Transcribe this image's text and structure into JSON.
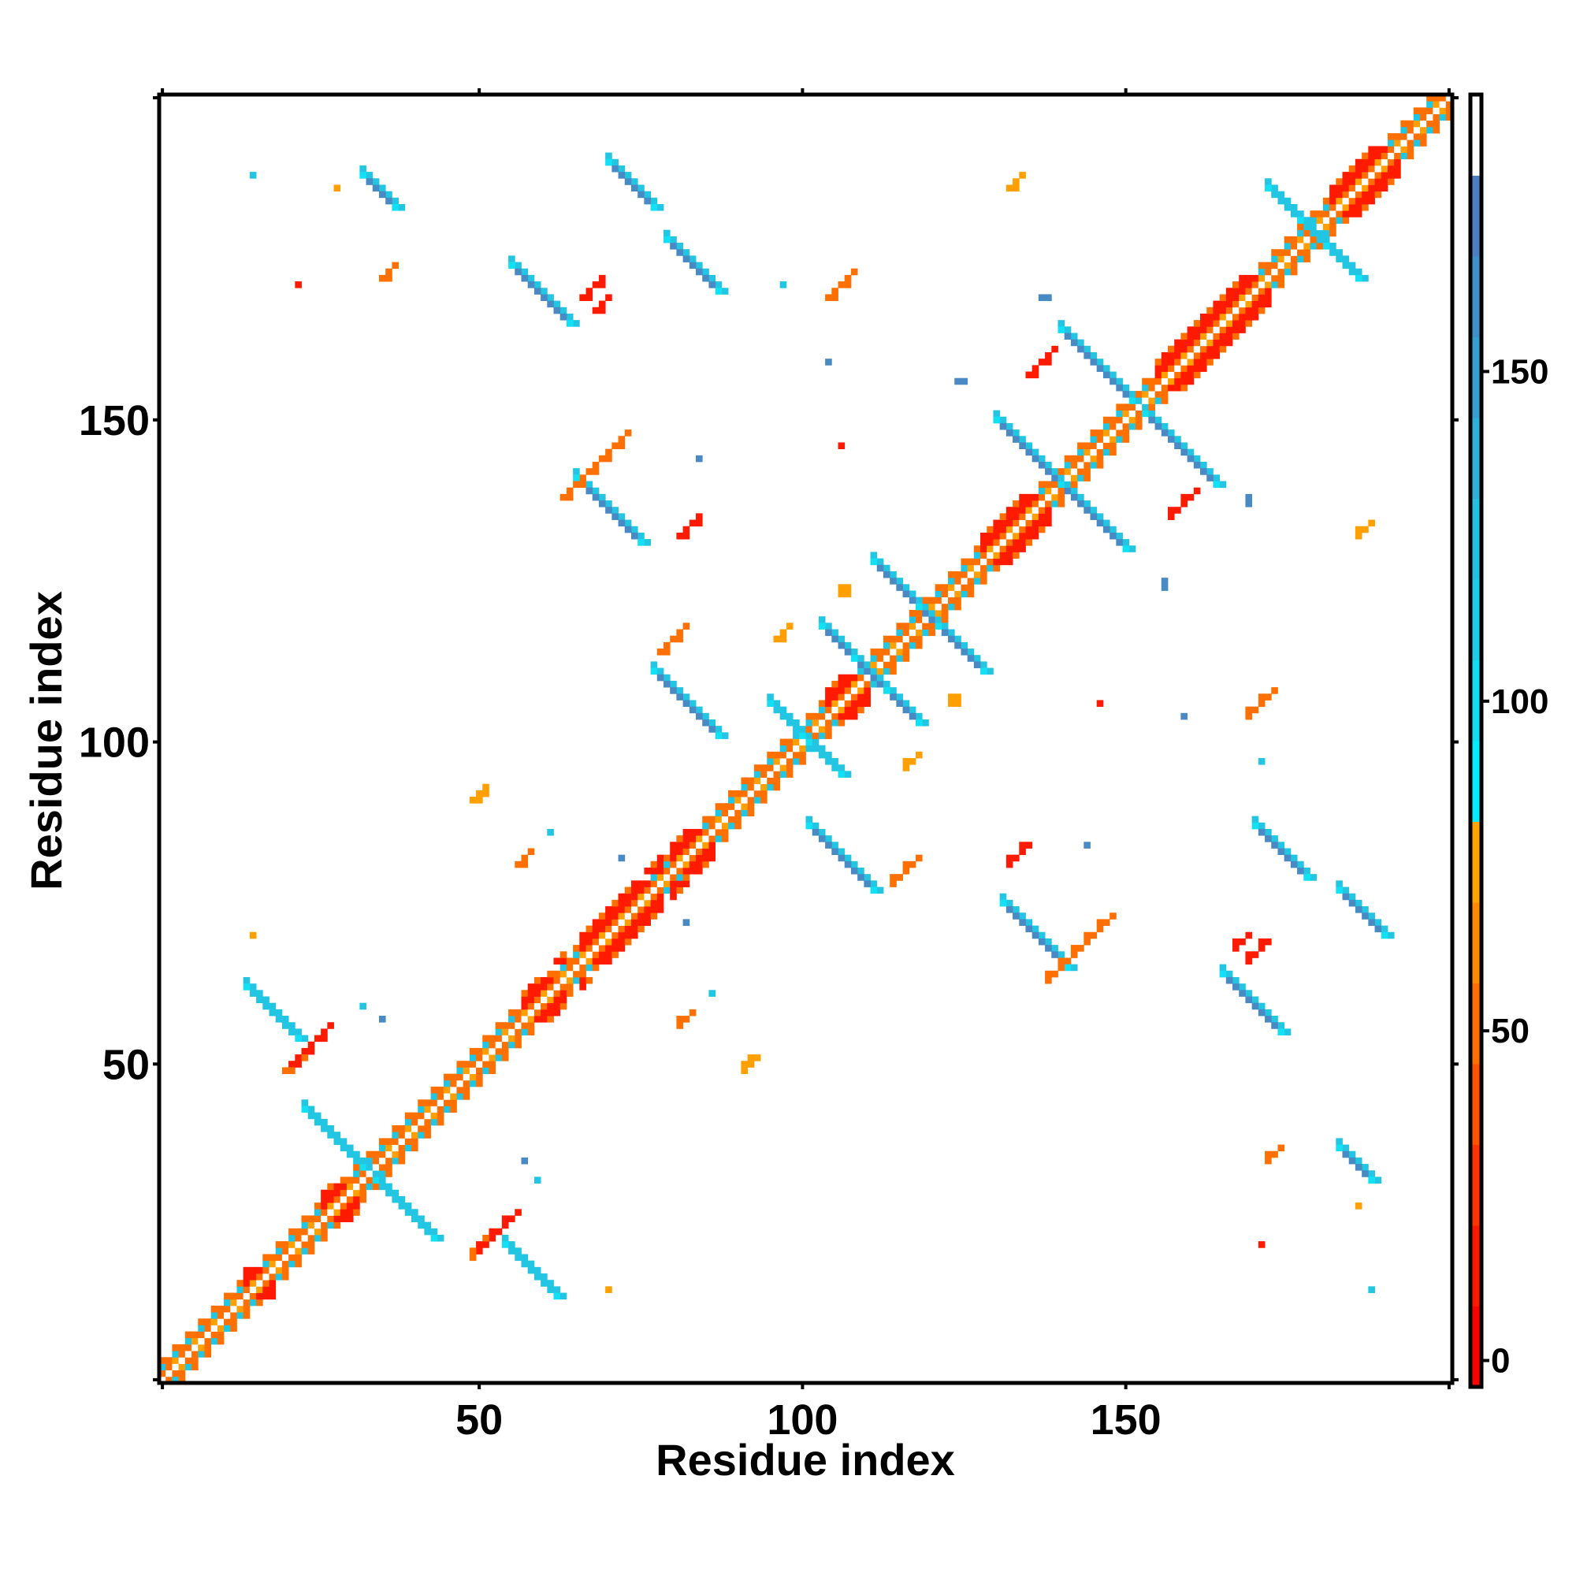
{
  "chart_data": {
    "type": "heatmap",
    "title": "",
    "xlabel": "Residue index",
    "ylabel": "Residue index",
    "n_residues": 200,
    "xlim": [
      0.5,
      200.5
    ],
    "ylim": [
      0.5,
      200.5
    ],
    "x_ticks": [
      50,
      100,
      150
    ],
    "y_ticks": [
      50,
      100,
      150
    ],
    "colorbar": {
      "ticks": [
        0,
        50,
        100,
        150
      ],
      "range": [
        -4,
        192
      ],
      "bins_bottom_to_top": [
        "#ff0000",
        "#ff1800",
        "#ff3300",
        "#ff5200",
        "#ff6e00",
        "#ff8a00",
        "#ffa500",
        "#00eeff",
        "#12dcf0",
        "#1ecde6",
        "#25c0e0",
        "#2db0d8",
        "#35a0d0",
        "#4090c8",
        "#4a80c0",
        "#ffffff"
      ]
    },
    "colors": {
      "strand_core": "#4a8ac4",
      "strand_edge": "#22c6e2",
      "strand_light": "#12e0f4",
      "helix": "#ff1a00",
      "orange": "#ff7000",
      "amber": "#ffa000",
      "white": "#ffffff"
    },
    "helices": [
      [
        14,
        18
      ],
      [
        26,
        31
      ],
      [
        57,
        63
      ],
      [
        66,
        78
      ],
      [
        80,
        86
      ],
      [
        104,
        110
      ],
      [
        128,
        138
      ],
      [
        155,
        172
      ],
      [
        182,
        192
      ]
    ],
    "antiparallel_contacts": [
      {
        "x": 32,
        "y": 188,
        "len": 6,
        "tone": "strand_core"
      },
      {
        "x": 70,
        "y": 190,
        "len": 8,
        "tone": "strand_core"
      },
      {
        "x": 79,
        "y": 178,
        "len": 9,
        "tone": "strand_core"
      },
      {
        "x": 55,
        "y": 174,
        "len": 10,
        "tone": "strand_core"
      },
      {
        "x": 65,
        "y": 141,
        "len": 11,
        "tone": "strand_core"
      },
      {
        "x": 140,
        "y": 164,
        "len": 12,
        "tone": "strand_core"
      },
      {
        "x": 130,
        "y": 150,
        "len": 11,
        "tone": "strand_core"
      },
      {
        "x": 111,
        "y": 128,
        "len": 11,
        "tone": "strand_core"
      },
      {
        "x": 103,
        "y": 118,
        "len": 11,
        "tone": "strand_core"
      },
      {
        "x": 77,
        "y": 111,
        "len": 11,
        "tone": "strand_core"
      },
      {
        "x": 14,
        "y": 62,
        "len": 9,
        "tone": "strand_edge"
      },
      {
        "x": 23,
        "y": 43,
        "len": 10,
        "tone": "strand_edge"
      },
      {
        "x": 95,
        "y": 106,
        "len": 7,
        "tone": "strand_edge"
      },
      {
        "x": 172,
        "y": 186,
        "len": 10,
        "tone": "strand_edge"
      }
    ],
    "parallel_contacts": [
      {
        "x": 63,
        "y": 138,
        "len": 11,
        "tone": "orange"
      },
      {
        "x": 104,
        "y": 169,
        "len": 5,
        "tone": "orange"
      },
      {
        "x": 81,
        "y": 132,
        "len": 4,
        "tone": "helix"
      },
      {
        "x": 35,
        "y": 172,
        "len": 3,
        "tone": "orange"
      },
      {
        "x": 78,
        "y": 114,
        "len": 5,
        "tone": "orange"
      },
      {
        "x": 49,
        "y": 91,
        "len": 3,
        "tone": "amber"
      },
      {
        "x": 20,
        "y": 49,
        "len": 4,
        "tone": "orange"
      },
      {
        "x": 56,
        "y": 81,
        "len": 3,
        "tone": "orange"
      },
      {
        "x": 21,
        "y": 50,
        "len": 7,
        "tone": "helix"
      },
      {
        "x": 68,
        "y": 167,
        "len": 3,
        "tone": "helix"
      },
      {
        "x": 135,
        "y": 157,
        "len": 5,
        "tone": "helix"
      },
      {
        "x": 96,
        "y": 116,
        "len": 3,
        "tone": "amber"
      },
      {
        "x": 106,
        "y": 123,
        "len": 2,
        "tone": "amber"
      },
      {
        "x": 66,
        "y": 169,
        "len": 4,
        "tone": "helix"
      },
      {
        "x": 132,
        "y": 186,
        "len": 3,
        "tone": "amber"
      },
      {
        "x": 123,
        "y": 106,
        "len": 2,
        "tone": "amber"
      }
    ],
    "single_contacts": [
      {
        "x": 22,
        "y": 171,
        "tone": "helix"
      },
      {
        "x": 15,
        "y": 188,
        "tone": "strand_core"
      },
      {
        "x": 15,
        "y": 70,
        "tone": "amber"
      },
      {
        "x": 171,
        "y": 22,
        "tone": "helix"
      },
      {
        "x": 188,
        "y": 15,
        "tone": "strand_edge"
      },
      {
        "x": 156,
        "y": 124,
        "tone": "strand_core"
      },
      {
        "x": 159,
        "y": 104,
        "tone": "strand_core"
      },
      {
        "x": 144,
        "y": 84,
        "tone": "strand_core"
      },
      {
        "x": 169,
        "y": 137,
        "tone": "strand_core"
      },
      {
        "x": 138,
        "y": 169,
        "tone": "strand_core"
      },
      {
        "x": 125,
        "y": 156,
        "tone": "strand_core"
      },
      {
        "x": 104,
        "y": 159,
        "tone": "strand_core"
      },
      {
        "x": 84,
        "y": 144,
        "tone": "strand_core"
      },
      {
        "x": 97,
        "y": 171,
        "tone": "strand_core"
      },
      {
        "x": 32,
        "y": 59,
        "tone": "strand_edge"
      },
      {
        "x": 35,
        "y": 57,
        "tone": "strand_core"
      },
      {
        "x": 57,
        "y": 35,
        "tone": "strand_core"
      },
      {
        "x": 59,
        "y": 32,
        "tone": "strand_edge"
      },
      {
        "x": 61,
        "y": 86,
        "tone": "strand_edge"
      },
      {
        "x": 72,
        "y": 82,
        "tone": "strand_core"
      },
      {
        "x": 171,
        "y": 97,
        "tone": "strand_edge"
      },
      {
        "x": 28,
        "y": 186,
        "tone": "amber"
      },
      {
        "x": 106,
        "y": 146,
        "tone": "helix"
      },
      {
        "x": 146,
        "y": 106,
        "tone": "helix"
      },
      {
        "x": 92,
        "y": 51,
        "tone": "amber"
      },
      {
        "x": 70,
        "y": 15,
        "tone": "amber"
      }
    ]
  }
}
